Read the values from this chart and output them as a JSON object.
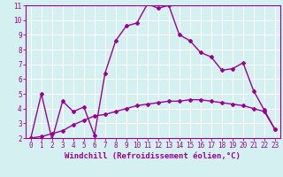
{
  "xlabel": "Windchill (Refroidissement éolien,°C)",
  "ylabel": "",
  "xlim": [
    -0.5,
    23.5
  ],
  "ylim": [
    2,
    11
  ],
  "yticks": [
    2,
    3,
    4,
    5,
    6,
    7,
    8,
    9,
    10,
    11
  ],
  "xticks": [
    0,
    1,
    2,
    3,
    4,
    5,
    6,
    7,
    8,
    9,
    10,
    11,
    12,
    13,
    14,
    15,
    16,
    17,
    18,
    19,
    20,
    21,
    22,
    23
  ],
  "line1_x": [
    0,
    1,
    2,
    3,
    4,
    5,
    6,
    7,
    8,
    9,
    10,
    11,
    12,
    13,
    14,
    15,
    16,
    17,
    18,
    19,
    20,
    21,
    22,
    23
  ],
  "line1_y": [
    2.0,
    5.0,
    1.9,
    4.5,
    3.8,
    4.1,
    2.2,
    6.4,
    8.6,
    9.6,
    9.8,
    11.1,
    10.8,
    11.0,
    9.0,
    8.6,
    7.8,
    7.5,
    6.6,
    6.7,
    7.1,
    5.2,
    3.9,
    2.6
  ],
  "line2_x": [
    0,
    1,
    2,
    3,
    4,
    5,
    6,
    7,
    8,
    9,
    10,
    11,
    12,
    13,
    14,
    15,
    16,
    17,
    18,
    19,
    20,
    21,
    22,
    23
  ],
  "line2_y": [
    2.0,
    2.1,
    2.3,
    2.5,
    2.9,
    3.2,
    3.5,
    3.6,
    3.8,
    4.0,
    4.2,
    4.3,
    4.4,
    4.5,
    4.5,
    4.6,
    4.6,
    4.5,
    4.4,
    4.3,
    4.2,
    4.0,
    3.8,
    2.6
  ],
  "line_color": "#990099",
  "bg_color": "#d4f0f0",
  "grid_color": "#ffffff",
  "marker": "D",
  "marker_size": 2,
  "line_width": 1.0,
  "tick_fontsize": 5.5,
  "xlabel_fontsize": 6.5
}
